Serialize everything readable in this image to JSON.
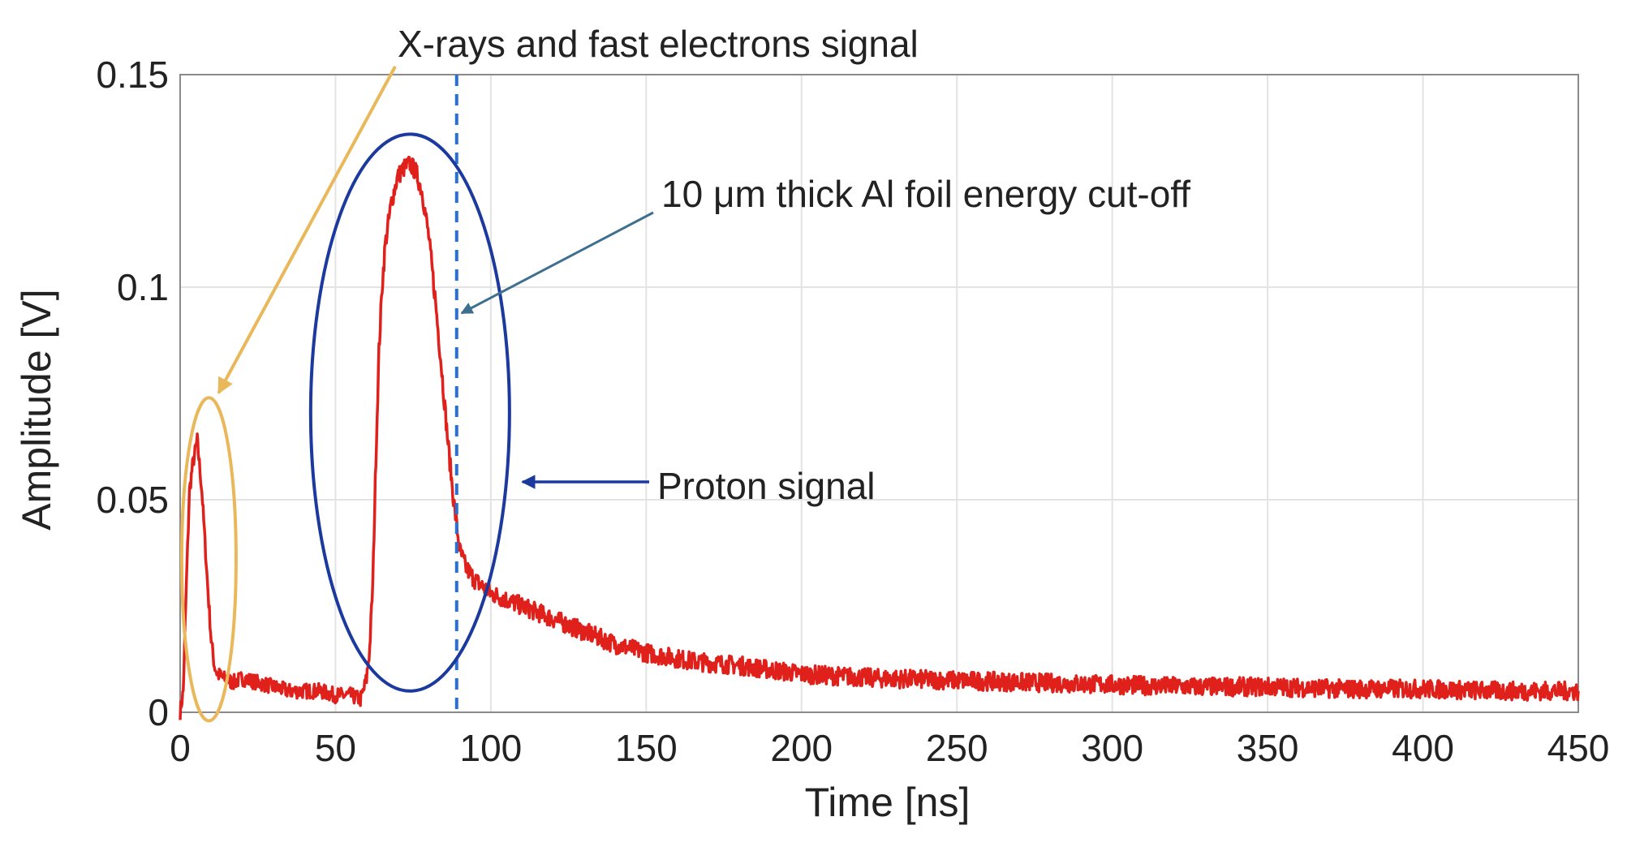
{
  "chart_data": {
    "type": "line",
    "title": "",
    "xlabel": "Time [ns]",
    "ylabel": "Amplitude [V]",
    "xlim": [
      0,
      450
    ],
    "ylim": [
      0,
      0.15
    ],
    "xticks": [
      0,
      50,
      100,
      150,
      200,
      250,
      300,
      350,
      400,
      450
    ],
    "yticks": [
      0,
      0.05,
      0.1,
      0.15
    ],
    "xtick_labels": [
      "0",
      "50",
      "100",
      "150",
      "200",
      "250",
      "300",
      "350",
      "400",
      "450"
    ],
    "ytick_labels": [
      "0",
      "0.05",
      "0.1",
      "0.15"
    ],
    "grid": true,
    "series": [
      {
        "name": "Signal",
        "color": "#e0201b",
        "x": [
          0,
          1,
          2,
          3,
          4,
          5,
          5.5,
          6,
          7,
          8,
          9,
          10,
          11,
          12,
          14,
          17,
          20,
          25,
          30,
          35,
          40,
          45,
          50,
          55,
          58,
          59,
          60,
          61,
          62,
          63,
          64,
          65,
          66,
          68,
          70,
          72,
          74,
          76,
          78,
          80,
          82,
          84,
          86,
          88,
          90,
          92,
          95,
          100,
          110,
          120,
          130,
          140,
          150,
          165,
          180,
          200,
          225,
          250,
          275,
          300,
          325,
          350,
          375,
          400,
          425,
          450
        ],
        "y": [
          0.0,
          0.005,
          0.03,
          0.052,
          0.058,
          0.062,
          0.064,
          0.06,
          0.052,
          0.04,
          0.028,
          0.017,
          0.011,
          0.009,
          0.008,
          0.007,
          0.008,
          0.007,
          0.006,
          0.005,
          0.005,
          0.005,
          0.004,
          0.004,
          0.003,
          0.005,
          0.008,
          0.015,
          0.03,
          0.06,
          0.085,
          0.1,
          0.11,
          0.12,
          0.126,
          0.128,
          0.129,
          0.127,
          0.122,
          0.112,
          0.098,
          0.082,
          0.065,
          0.05,
          0.038,
          0.034,
          0.031,
          0.028,
          0.025,
          0.022,
          0.019,
          0.016,
          0.014,
          0.012,
          0.011,
          0.009,
          0.008,
          0.0075,
          0.007,
          0.0065,
          0.006,
          0.006,
          0.0055,
          0.0055,
          0.005,
          0.005
        ]
      }
    ],
    "reference_lines": [
      {
        "name": "cut-off line",
        "x": 89,
        "color": "#2a6fd6",
        "style": "dashed"
      }
    ],
    "annotations": {
      "xray_label": "X-rays and fast electrons signal",
      "cutoff_label": "10 μm thick Al foil energy cut-off",
      "proton_label": "Proton signal"
    },
    "highlight_ellipses": [
      {
        "name": "x-ray region",
        "color": "#e8b85a",
        "x_range": [
          0.5,
          18
        ],
        "y_range": [
          -0.002,
          0.074
        ]
      },
      {
        "name": "proton region",
        "color": "#1c3a9e",
        "x_range": [
          42,
          106
        ],
        "y_range": [
          0.005,
          0.136
        ]
      }
    ]
  }
}
